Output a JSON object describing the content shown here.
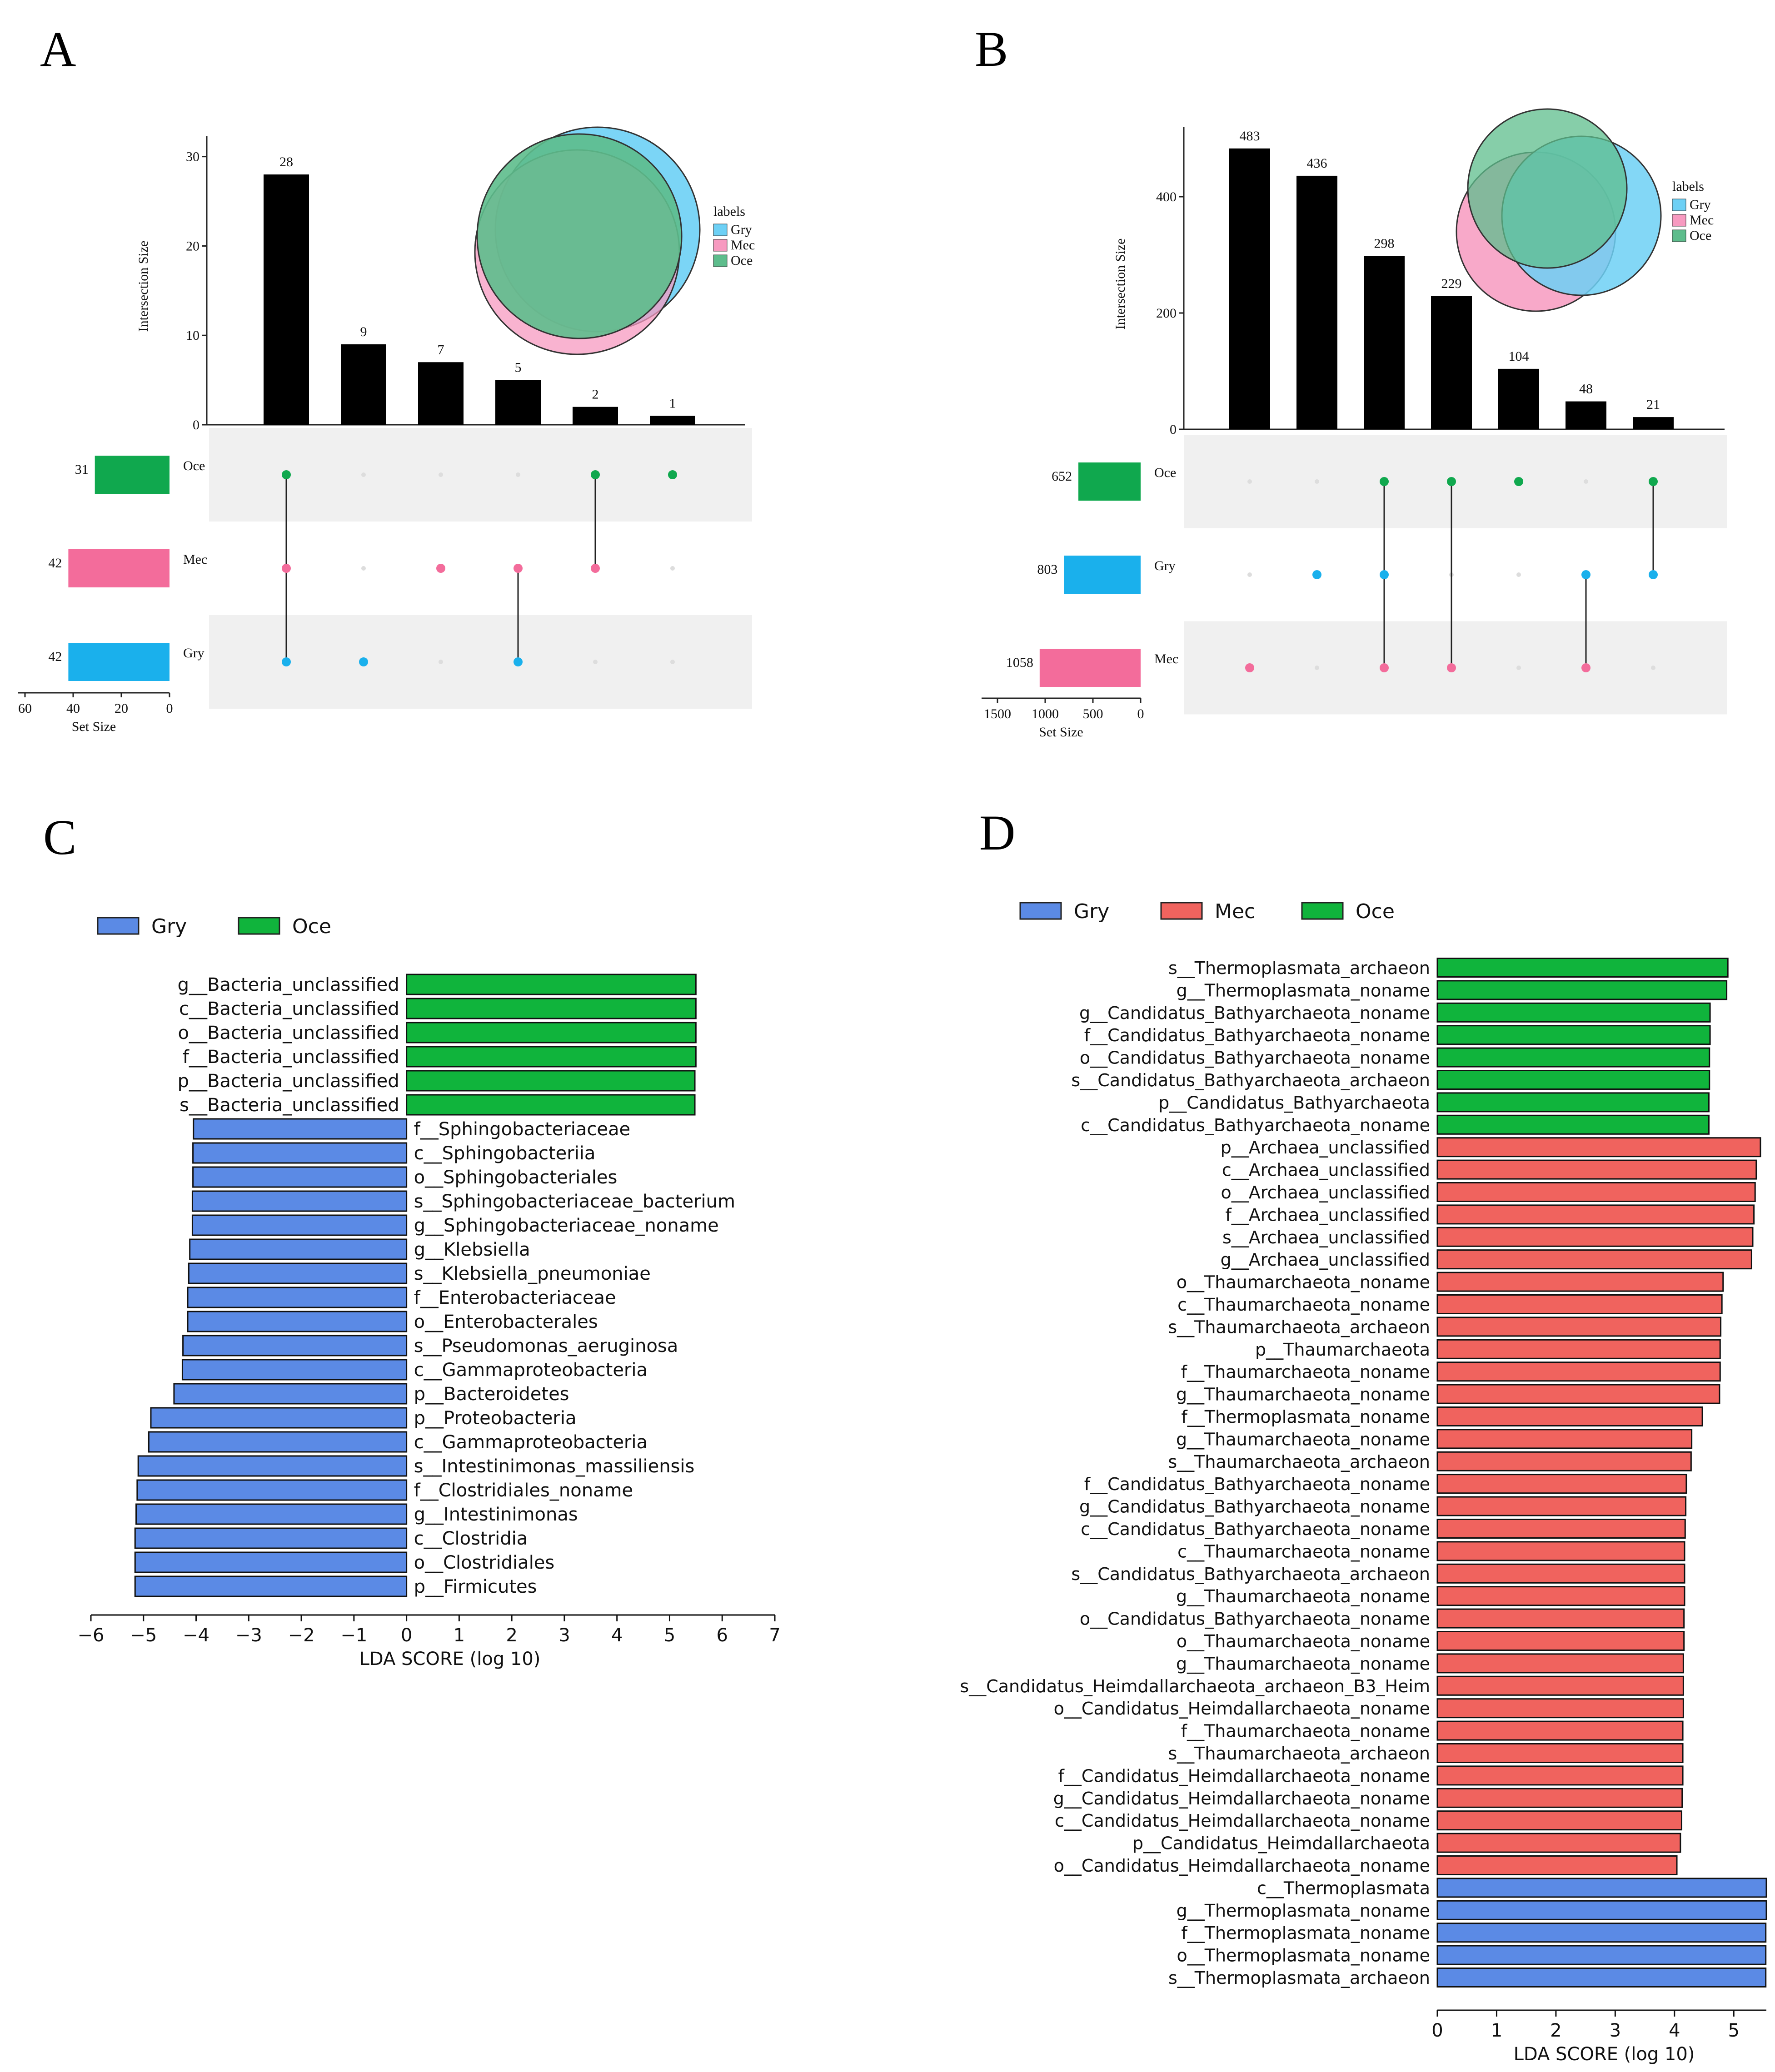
{
  "panel_labels": [
    "A",
    "B",
    "C",
    "D"
  ],
  "chart_data": [
    {
      "panel": "A",
      "type": "upset",
      "ylabel": "Intersection Size",
      "yticks": [
        0,
        10,
        20,
        30
      ],
      "ylim": [
        0,
        31
      ],
      "bars": [
        28,
        9,
        7,
        5,
        2,
        1
      ],
      "set_names": [
        "Oce",
        "Mec",
        "Gry"
      ],
      "set_sizes": [
        31,
        42,
        42
      ],
      "set_colors": [
        "#10a84e",
        "#f36c9b",
        "#1ab0ec"
      ],
      "setsize_label": "Set Size",
      "setsize_ticks": [
        60,
        40,
        20,
        0
      ],
      "setsize_max": 60,
      "memberships": [
        [
          0,
          1,
          2
        ],
        [
          2
        ],
        [
          1
        ],
        [
          1,
          2
        ],
        [
          0,
          1
        ],
        [
          0
        ]
      ],
      "venn": {
        "legend_title": "labels",
        "legend": [
          {
            "name": "Gry",
            "color": "#6dd0f5"
          },
          {
            "name": "Mec",
            "color": "#f79ac0"
          },
          {
            "name": "Oce",
            "color": "#5dbd8c"
          }
        ]
      }
    },
    {
      "panel": "B",
      "type": "upset",
      "ylabel": "Intersection Size",
      "yticks": [
        0,
        200,
        400
      ],
      "ylim": [
        0,
        500
      ],
      "bars": [
        483,
        436,
        298,
        229,
        104,
        48,
        21
      ],
      "set_names": [
        "Oce",
        "Gry",
        "Mec"
      ],
      "set_sizes": [
        652,
        803,
        1058
      ],
      "set_colors": [
        "#10a84e",
        "#1ab0ec",
        "#f36c9b"
      ],
      "setsize_label": "Set Size",
      "setsize_ticks": [
        1500,
        1000,
        500,
        0
      ],
      "setsize_max": 1500,
      "memberships": [
        [
          2
        ],
        [
          1
        ],
        [
          0,
          1,
          2
        ],
        [
          0,
          2
        ],
        [
          0
        ],
        [
          1,
          2
        ],
        [
          0,
          1
        ]
      ],
      "venn": {
        "legend_title": "labels",
        "legend": [
          {
            "name": "Gry",
            "color": "#6dd0f5"
          },
          {
            "name": "Mec",
            "color": "#f79ac0"
          },
          {
            "name": "Oce",
            "color": "#5dbd8c"
          }
        ]
      }
    },
    {
      "panel": "C",
      "type": "bar",
      "orientation": "horizontal",
      "xlabel": "LDA SCORE (log 10)",
      "xticks": [
        -6,
        -5,
        -4,
        -3,
        -2,
        -1,
        0,
        1,
        2,
        3,
        4,
        5,
        6,
        7
      ],
      "xlim": [
        -6,
        7
      ],
      "legend": [
        {
          "name": "Gry",
          "color": "#5b8ae5"
        },
        {
          "name": "Oce",
          "color": "#10b43c"
        }
      ],
      "bars": [
        {
          "label": "g__Bacteria_unclassified",
          "value": 5.5,
          "group": "Oce"
        },
        {
          "label": "c__Bacteria_unclassified",
          "value": 5.5,
          "group": "Oce"
        },
        {
          "label": "o__Bacteria_unclassified",
          "value": 5.5,
          "group": "Oce"
        },
        {
          "label": "f__Bacteria_unclassified",
          "value": 5.5,
          "group": "Oce"
        },
        {
          "label": "p__Bacteria_unclassified",
          "value": 5.48,
          "group": "Oce"
        },
        {
          "label": "s__Bacteria_unclassified",
          "value": 5.48,
          "group": "Oce"
        },
        {
          "label": "f__Sphingobacteriaceae",
          "value": -4.05,
          "group": "Gry"
        },
        {
          "label": "c__Sphingobacteriia",
          "value": -4.06,
          "group": "Gry"
        },
        {
          "label": "o__Sphingobacteriales",
          "value": -4.06,
          "group": "Gry"
        },
        {
          "label": "s__Sphingobacteriaceae_bacterium",
          "value": -4.07,
          "group": "Gry"
        },
        {
          "label": "g__Sphingobacteriaceae_noname",
          "value": -4.07,
          "group": "Gry"
        },
        {
          "label": "g__Klebsiella",
          "value": -4.12,
          "group": "Gry"
        },
        {
          "label": "s__Klebsiella_pneumoniae",
          "value": -4.14,
          "group": "Gry"
        },
        {
          "label": "f__Enterobacteriaceae",
          "value": -4.16,
          "group": "Gry"
        },
        {
          "label": "o__Enterobacterales",
          "value": -4.16,
          "group": "Gry"
        },
        {
          "label": "s__Pseudomonas_aeruginosa",
          "value": -4.25,
          "group": "Gry"
        },
        {
          "label": "c__Gammaproteobacteria",
          "value": -4.26,
          "group": "Gry"
        },
        {
          "label": "p__Bacteroidetes",
          "value": -4.42,
          "group": "Gry"
        },
        {
          "label": "p__Proteobacteria",
          "value": -4.86,
          "group": "Gry"
        },
        {
          "label": "c__Gammaproteobacteria",
          "value": -4.9,
          "group": "Gry"
        },
        {
          "label": "s__Intestinimonas_massiliensis",
          "value": -5.1,
          "group": "Gry"
        },
        {
          "label": "f__Clostridiales_noname",
          "value": -5.12,
          "group": "Gry"
        },
        {
          "label": "g__Intestinimonas",
          "value": -5.14,
          "group": "Gry"
        },
        {
          "label": "c__Clostridia",
          "value": -5.16,
          "group": "Gry"
        },
        {
          "label": "o__Clostridiales",
          "value": -5.16,
          "group": "Gry"
        },
        {
          "label": "p__Firmicutes",
          "value": -5.16,
          "group": "Gry"
        }
      ]
    },
    {
      "panel": "D",
      "type": "bar",
      "orientation": "horizontal",
      "xlabel": "LDA SCORE (log 10)",
      "xticks": [
        0,
        1,
        2,
        3,
        4,
        5
      ],
      "xlim": [
        0,
        5.55
      ],
      "legend": [
        {
          "name": "Gry",
          "color": "#5b8ae5"
        },
        {
          "name": "Mec",
          "color": "#f0635e"
        },
        {
          "name": "Oce",
          "color": "#10b43c"
        }
      ],
      "bars": [
        {
          "label": "s__Thermoplasmata_archaeon",
          "value": 4.9,
          "group": "Oce"
        },
        {
          "label": "g__Thermoplasmata_noname",
          "value": 4.88,
          "group": "Oce"
        },
        {
          "label": "g__Candidatus_Bathyarchaeota_noname",
          "value": 4.6,
          "group": "Oce"
        },
        {
          "label": "f__Candidatus_Bathyarchaeota_noname",
          "value": 4.6,
          "group": "Oce"
        },
        {
          "label": "o__Candidatus_Bathyarchaeota_noname",
          "value": 4.59,
          "group": "Oce"
        },
        {
          "label": "s__Candidatus_Bathyarchaeota_archaeon",
          "value": 4.59,
          "group": "Oce"
        },
        {
          "label": "p__Candidatus_Bathyarchaeota",
          "value": 4.58,
          "group": "Oce"
        },
        {
          "label": "c__Candidatus_Bathyarchaeota_noname",
          "value": 4.58,
          "group": "Oce"
        },
        {
          "label": "p__Archaea_unclassified",
          "value": 5.45,
          "group": "Mec"
        },
        {
          "label": "c__Archaea_unclassified",
          "value": 5.38,
          "group": "Mec"
        },
        {
          "label": "o__Archaea_unclassified",
          "value": 5.36,
          "group": "Mec"
        },
        {
          "label": "f__Archaea_unclassified",
          "value": 5.34,
          "group": "Mec"
        },
        {
          "label": "s__Archaea_unclassified",
          "value": 5.32,
          "group": "Mec"
        },
        {
          "label": "g__Archaea_unclassified",
          "value": 5.3,
          "group": "Mec"
        },
        {
          "label": "o__Thaumarchaeota_noname",
          "value": 4.82,
          "group": "Mec"
        },
        {
          "label": "c__Thaumarchaeota_noname",
          "value": 4.8,
          "group": "Mec"
        },
        {
          "label": "s__Thaumarchaeota_archaeon",
          "value": 4.78,
          "group": "Mec"
        },
        {
          "label": "p__Thaumarchaeota",
          "value": 4.77,
          "group": "Mec"
        },
        {
          "label": "f__Thaumarchaeota_noname",
          "value": 4.77,
          "group": "Mec"
        },
        {
          "label": "g__Thaumarchaeota_noname",
          "value": 4.76,
          "group": "Mec"
        },
        {
          "label": "f__Thermoplasmata_noname",
          "value": 4.47,
          "group": "Mec"
        },
        {
          "label": "g__Thaumarchaeota_noname",
          "value": 4.29,
          "group": "Mec"
        },
        {
          "label": "s__Thaumarchaeota_archaeon",
          "value": 4.28,
          "group": "Mec"
        },
        {
          "label": "f__Candidatus_Bathyarchaeota_noname",
          "value": 4.2,
          "group": "Mec"
        },
        {
          "label": "g__Candidatus_Bathyarchaeota_noname",
          "value": 4.19,
          "group": "Mec"
        },
        {
          "label": "c__Candidatus_Bathyarchaeota_noname",
          "value": 4.18,
          "group": "Mec"
        },
        {
          "label": "c__Thaumarchaeota_noname",
          "value": 4.17,
          "group": "Mec"
        },
        {
          "label": "s__Candidatus_Bathyarchaeota_archaeon",
          "value": 4.17,
          "group": "Mec"
        },
        {
          "label": "g__Thaumarchaeota_noname",
          "value": 4.17,
          "group": "Mec"
        },
        {
          "label": "o__Candidatus_Bathyarchaeota_noname",
          "value": 4.16,
          "group": "Mec"
        },
        {
          "label": "o__Thaumarchaeota_noname",
          "value": 4.16,
          "group": "Mec"
        },
        {
          "label": "g__Thaumarchaeota_noname",
          "value": 4.15,
          "group": "Mec"
        },
        {
          "label": "s__Candidatus_Heimdallarchaeota_archaeon_B3_Heim",
          "value": 4.15,
          "group": "Mec"
        },
        {
          "label": "o__Candidatus_Heimdallarchaeota_noname",
          "value": 4.15,
          "group": "Mec"
        },
        {
          "label": "f__Thaumarchaeota_noname",
          "value": 4.14,
          "group": "Mec"
        },
        {
          "label": "s__Thaumarchaeota_archaeon",
          "value": 4.14,
          "group": "Mec"
        },
        {
          "label": "f__Candidatus_Heimdallarchaeota_noname",
          "value": 4.14,
          "group": "Mec"
        },
        {
          "label": "g__Candidatus_Heimdallarchaeota_noname",
          "value": 4.13,
          "group": "Mec"
        },
        {
          "label": "c__Candidatus_Heimdallarchaeota_noname",
          "value": 4.12,
          "group": "Mec"
        },
        {
          "label": "p__Candidatus_Heimdallarchaeota",
          "value": 4.1,
          "group": "Mec"
        },
        {
          "label": "o__Candidatus_Heimdallarchaeota_noname",
          "value": 4.04,
          "group": "Mec"
        },
        {
          "label": "c__Thermoplasmata",
          "value": 5.55,
          "group": "Gry"
        },
        {
          "label": "g__Thermoplasmata_noname",
          "value": 5.55,
          "group": "Gry"
        },
        {
          "label": "f__Thermoplasmata_noname",
          "value": 5.54,
          "group": "Gry"
        },
        {
          "label": "o__Thermoplasmata_noname",
          "value": 5.54,
          "group": "Gry"
        },
        {
          "label": "s__Thermoplasmata_archaeon",
          "value": 5.54,
          "group": "Gry"
        }
      ]
    }
  ]
}
